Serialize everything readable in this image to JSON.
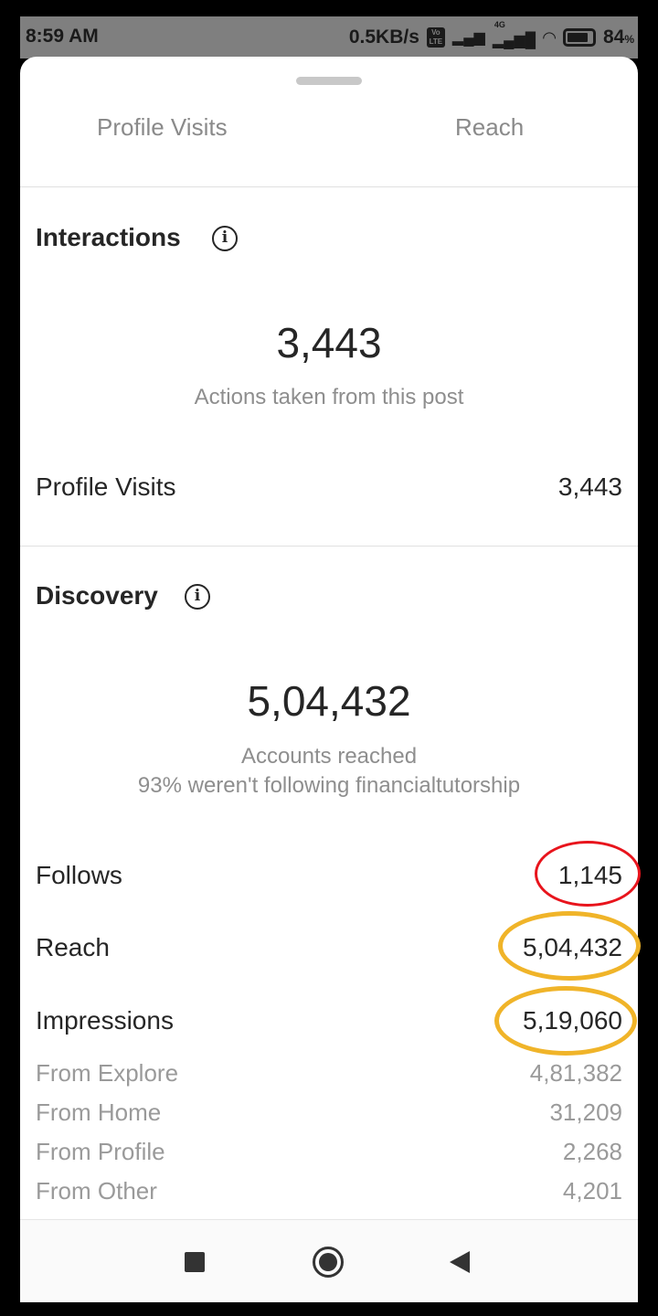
{
  "status_bar": {
    "time": "8:59 AM",
    "network_speed": "0.5KB/s",
    "volte": "Vo LTE",
    "network": "4G",
    "battery": "84",
    "battery_unit": "%"
  },
  "tabs": [
    {
      "label": "Profile Visits"
    },
    {
      "label": "Reach"
    }
  ],
  "interactions": {
    "title": "Interactions",
    "total": "3,443",
    "caption": "Actions taken from this post",
    "rows": [
      {
        "label": "Profile Visits",
        "value": "3,443"
      }
    ]
  },
  "discovery": {
    "title": "Discovery",
    "total": "5,04,432",
    "caption": "Accounts reached",
    "caption2": "93% weren't following financialtutorship",
    "rows": [
      {
        "label": "Follows",
        "value": "1,145"
      },
      {
        "label": "Reach",
        "value": "5,04,432"
      },
      {
        "label": "Impressions",
        "value": "5,19,060"
      }
    ],
    "sources": [
      {
        "label": "From Explore",
        "value": "4,81,382"
      },
      {
        "label": "From Home",
        "value": "31,209"
      },
      {
        "label": "From Profile",
        "value": "2,268"
      },
      {
        "label": "From Other",
        "value": "4,201"
      }
    ]
  },
  "annotation_colors": {
    "red": "#e8141c",
    "yellow": "#f0b429"
  },
  "icons": {
    "info": "info-icon",
    "stop": "square-icon",
    "home": "circle-icon",
    "back": "triangle-back-icon"
  }
}
